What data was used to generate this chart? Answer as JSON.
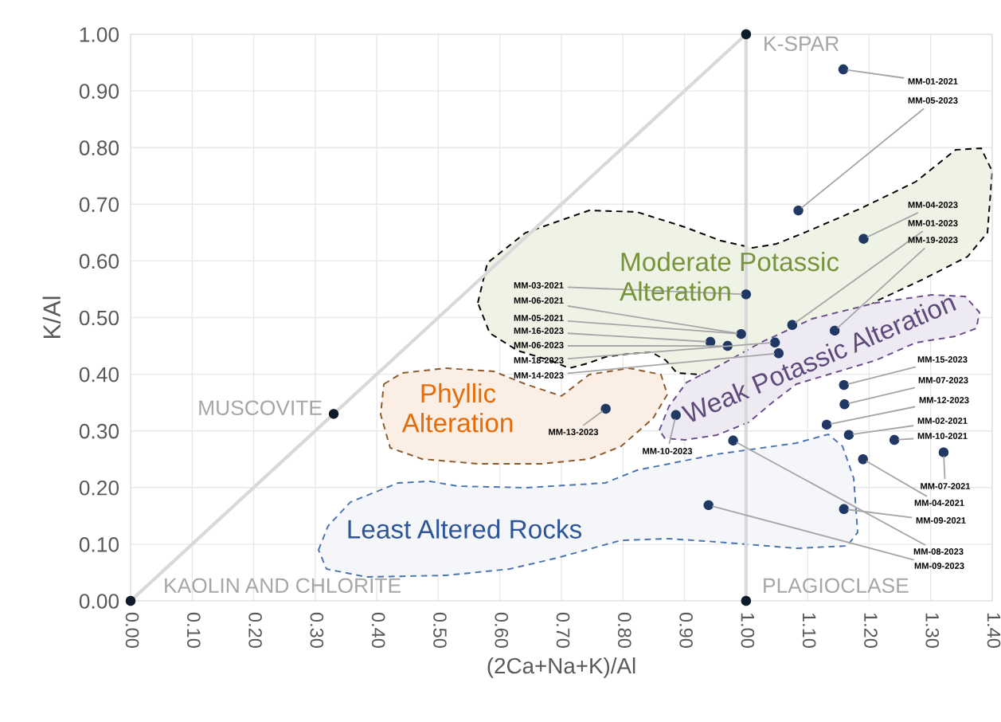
{
  "chart_data": {
    "type": "scatter",
    "xlabel": "(2Ca+Na+K)/Al",
    "ylabel": "K/Al",
    "xlim": [
      0,
      1.4
    ],
    "ylim": [
      0,
      1.0
    ],
    "xticks": [
      {
        "value": 0,
        "label": "0.00"
      },
      {
        "value": 0.1,
        "label": "0.10"
      },
      {
        "value": 0.2,
        "label": "0.20"
      },
      {
        "value": 0.3,
        "label": "0.30"
      },
      {
        "value": 0.4,
        "label": "0.40"
      },
      {
        "value": 0.5,
        "label": "0.50"
      },
      {
        "value": 0.6,
        "label": "0.60"
      },
      {
        "value": 0.7,
        "label": "0.70"
      },
      {
        "value": 0.8,
        "label": "0.80"
      },
      {
        "value": 0.9,
        "label": "0.90"
      },
      {
        "value": 1.0,
        "label": "1.00"
      },
      {
        "value": 1.1,
        "label": "1.10"
      },
      {
        "value": 1.2,
        "label": "1.20"
      },
      {
        "value": 1.3,
        "label": "1.30"
      },
      {
        "value": 1.4,
        "label": "1.40"
      }
    ],
    "yticks": [
      {
        "value": 0,
        "label": "0.00"
      },
      {
        "value": 0.1,
        "label": "0.10"
      },
      {
        "value": 0.2,
        "label": "0.20"
      },
      {
        "value": 0.3,
        "label": "0.30"
      },
      {
        "value": 0.4,
        "label": "0.40"
      },
      {
        "value": 0.5,
        "label": "0.50"
      },
      {
        "value": 0.6,
        "label": "0.60"
      },
      {
        "value": 0.7,
        "label": "0.70"
      },
      {
        "value": 0.8,
        "label": "0.80"
      },
      {
        "value": 0.9,
        "label": "0.90"
      },
      {
        "value": 1.0,
        "label": "1.00"
      }
    ],
    "grid": true,
    "series": [
      {
        "type": "line",
        "color": "#d9d9d9",
        "marker": "none",
        "x": [
          0.0,
          0.33,
          1.0,
          1.0
        ],
        "values": [
          0.0,
          0.33,
          1.0,
          0.0
        ]
      },
      {
        "color": "#0d1b2a",
        "marker": "circle",
        "x": [
          0.0,
          0.33,
          1.0,
          1.0
        ],
        "values": [
          0.0,
          0.33,
          1.0,
          0.0
        ]
      },
      {
        "color": "#1f3864",
        "marker": "circle",
        "x": [
          1.158,
          1.085,
          1.191,
          1.075,
          1.144,
          1.0,
          0.992,
          0.942,
          0.97,
          1.047,
          1.053,
          0.772,
          0.886,
          1.159,
          1.16,
          1.131,
          1.167,
          1.241,
          1.321,
          1.19,
          1.159,
          0.979,
          0.939
        ],
        "values": [
          0.938,
          0.689,
          0.639,
          0.487,
          0.477,
          0.541,
          0.471,
          0.457,
          0.45,
          0.456,
          0.437,
          0.339,
          0.328,
          0.381,
          0.347,
          0.311,
          0.293,
          0.284,
          0.262,
          0.25,
          0.162,
          0.283,
          0.169
        ]
      }
    ],
    "annotations": [
      "Moderate Potassic\nAlteration",
      "Phyllic\nAlteration",
      "Weak Potassic Alteration",
      "Least Altered Rocks",
      {
        "text": "K-SPAR",
        "x": 1.0,
        "y": 1.0
      },
      {
        "text": "MUSCOVITE",
        "x": 0.33,
        "y": 0.33
      },
      {
        "text": "KAOLIN AND CHLORITE",
        "x": 0.0,
        "y": 0.0
      },
      {
        "text": "PLAGIOCLASE",
        "x": 1.0,
        "y": 0.0
      },
      {
        "text": "MM-01-2021",
        "x": 1.158,
        "y": 0.938
      },
      {
        "text": "MM-05-2023",
        "x": 1.085,
        "y": 0.689
      },
      {
        "text": "MM-04-2023",
        "x": 1.191,
        "y": 0.639
      },
      {
        "text": "MM-01-2023",
        "x": 1.075,
        "y": 0.487
      },
      {
        "text": "MM-19-2023",
        "x": 1.144,
        "y": 0.477
      },
      {
        "text": "MM-03-2021",
        "x": 1.0,
        "y": 0.541
      },
      {
        "text": "MM-06-2021",
        "x": 0.992,
        "y": 0.471
      },
      {
        "text": "MM-05-2021",
        "x": 0.992,
        "y": 0.471
      },
      {
        "text": "MM-16-2023",
        "x": 0.942,
        "y": 0.457
      },
      {
        "text": "MM-06-2023",
        "x": 0.97,
        "y": 0.45
      },
      {
        "text": "MM-18-2023",
        "x": 1.047,
        "y": 0.456
      },
      {
        "text": "MM-14-2023",
        "x": 1.053,
        "y": 0.437
      },
      {
        "text": "MM-13-2023",
        "x": 0.772,
        "y": 0.339
      },
      {
        "text": "MM-10-2023",
        "x": 0.886,
        "y": 0.328
      },
      {
        "text": "MM-15-2023",
        "x": 1.159,
        "y": 0.381
      },
      {
        "text": "MM-07-2023",
        "x": 1.16,
        "y": 0.347
      },
      {
        "text": "MM-12-2023",
        "x": 1.131,
        "y": 0.311
      },
      {
        "text": "MM-02-2021",
        "x": 1.167,
        "y": 0.293
      },
      {
        "text": "MM-10-2021",
        "x": 1.241,
        "y": 0.284
      },
      {
        "text": "MM-07-2021",
        "x": 1.321,
        "y": 0.262
      },
      {
        "text": "MM-04-2021",
        "x": 1.19,
        "y": 0.25
      },
      {
        "text": "MM-09-2021",
        "x": 1.159,
        "y": 0.162
      },
      {
        "text": "MM-08-2023",
        "x": 0.979,
        "y": 0.283
      },
      {
        "text": "MM-09-2023",
        "x": 0.939,
        "y": 0.169
      }
    ]
  }
}
